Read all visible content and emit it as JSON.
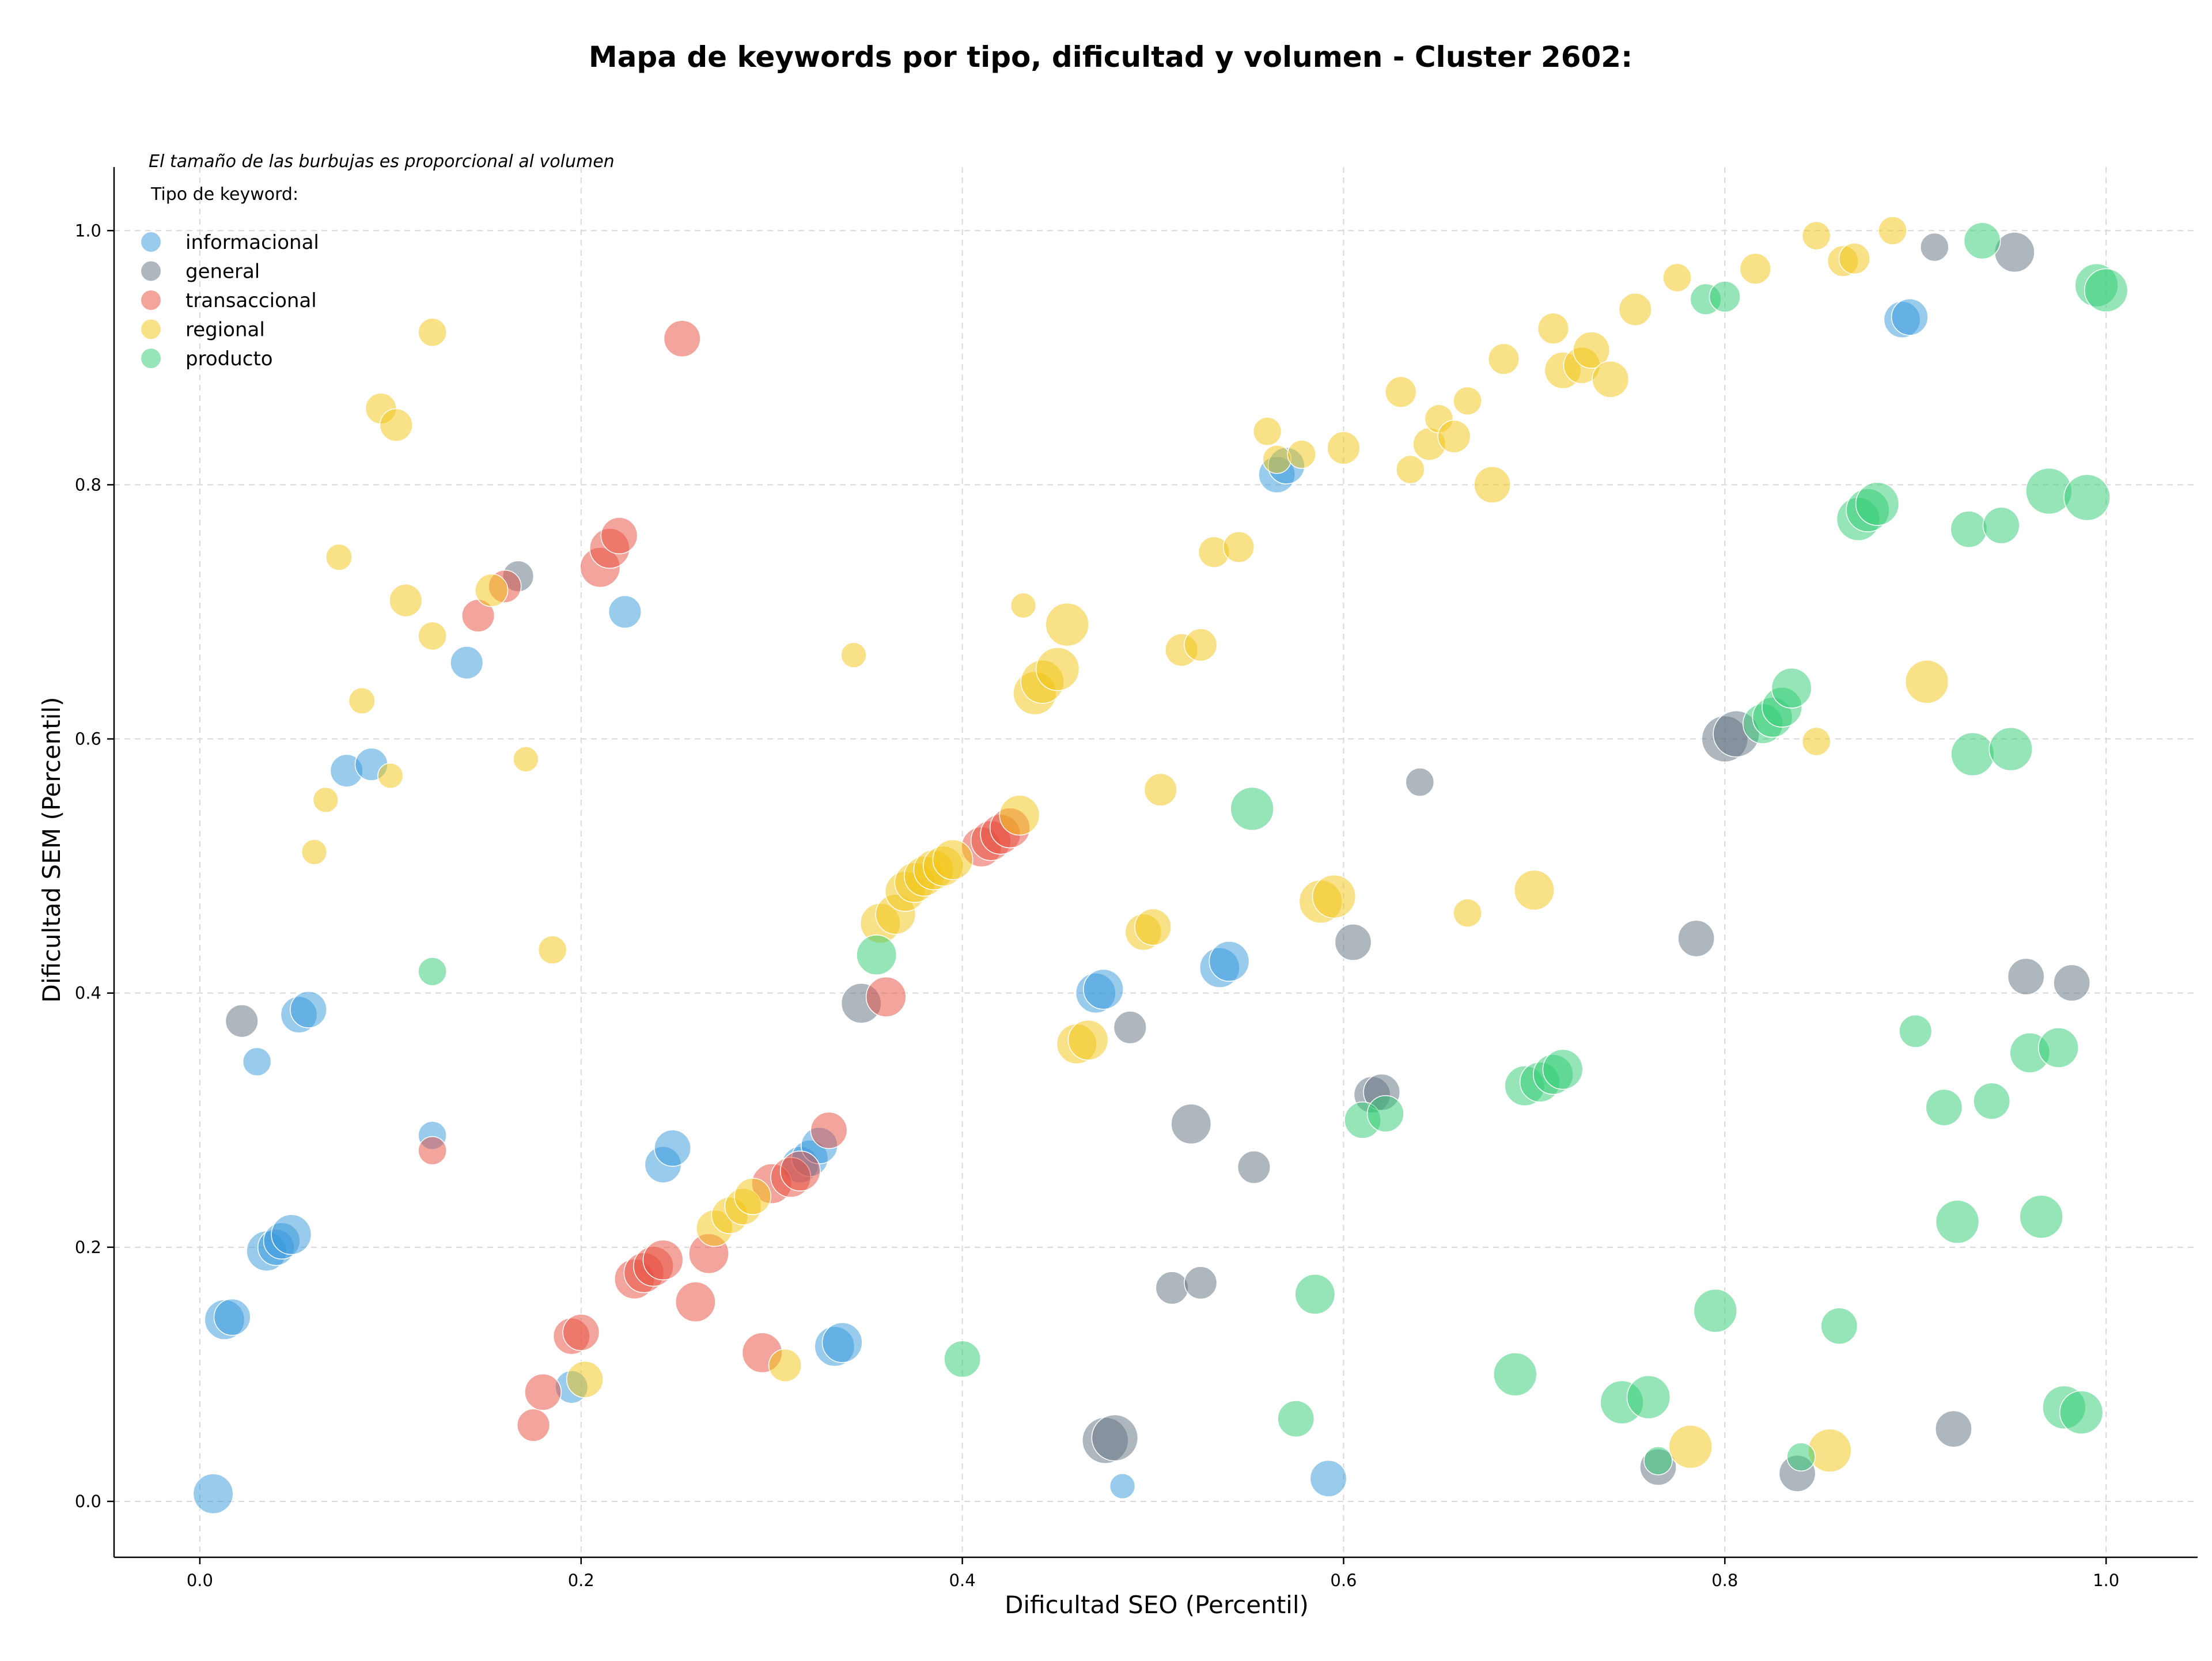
{
  "chart_data": {
    "type": "scatter",
    "title": "Mapa de keywords por tipo, dificultad y volumen - Cluster 2602:",
    "xlabel": "Dificultad SEO (Percentil)",
    "ylabel": "Dificultad SEM (Percentil)",
    "annotation": "El tamaño de las burbujas es proporcional al volumen",
    "legend_title": "Tipo de keyword:",
    "legend_position": "top-left",
    "grid": true,
    "xlim": [
      -0.045,
      1.048
    ],
    "ylim": [
      -0.044,
      1.05
    ],
    "xticks": [
      "0.0",
      "0.2",
      "0.4",
      "0.6",
      "0.8",
      "1.0"
    ],
    "yticks": [
      "0.0",
      "0.2",
      "0.4",
      "0.6",
      "0.8",
      "1.0"
    ],
    "series": [
      {
        "name": "informacional",
        "color": "#3498db",
        "points": [
          [
            0.007,
            0.006,
            3
          ],
          [
            0.013,
            0.143,
            3
          ],
          [
            0.017,
            0.145,
            2.5
          ],
          [
            0.03,
            0.346,
            1.5
          ],
          [
            0.035,
            0.197,
            3
          ],
          [
            0.04,
            0.2,
            2.5
          ],
          [
            0.043,
            0.205,
            2.5
          ],
          [
            0.048,
            0.21,
            3
          ],
          [
            0.052,
            0.383,
            2.5
          ],
          [
            0.057,
            0.387,
            2.5
          ],
          [
            0.077,
            0.575,
            2
          ],
          [
            0.09,
            0.58,
            2
          ],
          [
            0.122,
            0.288,
            1.5
          ],
          [
            0.14,
            0.66,
            2
          ],
          [
            0.223,
            0.7,
            2
          ],
          [
            0.195,
            0.09,
            2
          ],
          [
            0.243,
            0.265,
            2.5
          ],
          [
            0.248,
            0.278,
            2.5
          ],
          [
            0.315,
            0.265,
            2.5
          ],
          [
            0.32,
            0.27,
            2.5
          ],
          [
            0.325,
            0.28,
            2.5
          ],
          [
            0.333,
            0.122,
            3
          ],
          [
            0.337,
            0.125,
            3
          ],
          [
            0.47,
            0.4,
            3
          ],
          [
            0.474,
            0.403,
            3
          ],
          [
            0.484,
            0.012,
            1.2
          ],
          [
            0.535,
            0.42,
            3
          ],
          [
            0.54,
            0.425,
            3
          ],
          [
            0.565,
            0.808,
            2.5
          ],
          [
            0.57,
            0.815,
            2.5
          ],
          [
            0.592,
            0.018,
            2.5
          ],
          [
            0.893,
            0.93,
            2.5
          ],
          [
            0.897,
            0.932,
            2.5
          ]
        ]
      },
      {
        "name": "general",
        "color": "#5d6d7e",
        "points": [
          [
            0.022,
            0.378,
            2
          ],
          [
            0.167,
            0.728,
            1.8
          ],
          [
            0.347,
            0.392,
            3
          ],
          [
            0.475,
            0.048,
            4
          ],
          [
            0.48,
            0.05,
            4
          ],
          [
            0.488,
            0.373,
            2
          ],
          [
            0.52,
            0.297,
            3
          ],
          [
            0.51,
            0.168,
            2
          ],
          [
            0.525,
            0.172,
            2
          ],
          [
            0.553,
            0.263,
            2
          ],
          [
            0.605,
            0.44,
            2.5
          ],
          [
            0.615,
            0.32,
            2.5
          ],
          [
            0.62,
            0.322,
            2.5
          ],
          [
            0.64,
            0.566,
            1.5
          ],
          [
            0.765,
            0.027,
            2.5
          ],
          [
            0.785,
            0.443,
            2.5
          ],
          [
            0.8,
            0.6,
            4
          ],
          [
            0.806,
            0.604,
            4
          ],
          [
            0.838,
            0.022,
            2.5
          ],
          [
            0.91,
            0.987,
            1.5
          ],
          [
            0.92,
            0.057,
            2.5
          ],
          [
            0.952,
            0.983,
            3
          ],
          [
            0.958,
            0.413,
            2.5
          ],
          [
            0.982,
            0.408,
            2.5
          ]
        ]
      },
      {
        "name": "transaccional",
        "color": "#e74c3c",
        "points": [
          [
            0.122,
            0.276,
            1.5
          ],
          [
            0.146,
            0.697,
            2
          ],
          [
            0.16,
            0.72,
            2
          ],
          [
            0.175,
            0.06,
            2
          ],
          [
            0.18,
            0.086,
            2.5
          ],
          [
            0.195,
            0.13,
            2.5
          ],
          [
            0.2,
            0.133,
            2.5
          ],
          [
            0.21,
            0.735,
            3
          ],
          [
            0.215,
            0.75,
            3
          ],
          [
            0.22,
            0.76,
            2.5
          ],
          [
            0.228,
            0.175,
            3
          ],
          [
            0.233,
            0.18,
            3
          ],
          [
            0.238,
            0.185,
            3
          ],
          [
            0.243,
            0.19,
            3
          ],
          [
            0.253,
            0.915,
            2.5
          ],
          [
            0.26,
            0.157,
            3
          ],
          [
            0.267,
            0.195,
            3
          ],
          [
            0.295,
            0.117,
            3
          ],
          [
            0.3,
            0.25,
            3
          ],
          [
            0.31,
            0.255,
            3
          ],
          [
            0.315,
            0.26,
            3
          ],
          [
            0.33,
            0.292,
            2.5
          ],
          [
            0.36,
            0.397,
            3
          ],
          [
            0.41,
            0.515,
            3
          ],
          [
            0.415,
            0.52,
            3
          ],
          [
            0.42,
            0.525,
            3
          ],
          [
            0.425,
            0.53,
            3
          ]
        ]
      },
      {
        "name": "regional",
        "color": "#f1c40f",
        "points": [
          [
            0.06,
            0.511,
            1.2
          ],
          [
            0.066,
            0.552,
            1.2
          ],
          [
            0.073,
            0.743,
            1.3
          ],
          [
            0.085,
            0.63,
            1.3
          ],
          [
            0.095,
            0.86,
            1.8
          ],
          [
            0.1,
            0.571,
            1.2
          ],
          [
            0.103,
            0.847,
            2
          ],
          [
            0.108,
            0.709,
            2
          ],
          [
            0.122,
            0.681,
            1.5
          ],
          [
            0.122,
            0.92,
            1.5
          ],
          [
            0.153,
            0.717,
            2
          ],
          [
            0.171,
            0.584,
            1.2
          ],
          [
            0.185,
            0.434,
            1.5
          ],
          [
            0.202,
            0.096,
            2.5
          ],
          [
            0.27,
            0.215,
            2.5
          ],
          [
            0.278,
            0.225,
            2.5
          ],
          [
            0.285,
            0.232,
            2.5
          ],
          [
            0.29,
            0.24,
            2.5
          ],
          [
            0.307,
            0.107,
            2
          ],
          [
            0.343,
            0.666,
            1.2
          ],
          [
            0.357,
            0.455,
            3
          ],
          [
            0.365,
            0.462,
            3
          ],
          [
            0.37,
            0.48,
            3
          ],
          [
            0.375,
            0.487,
            3
          ],
          [
            0.38,
            0.492,
            3
          ],
          [
            0.385,
            0.497,
            3
          ],
          [
            0.39,
            0.5,
            3
          ],
          [
            0.395,
            0.505,
            3
          ],
          [
            0.43,
            0.54,
            3
          ],
          [
            0.432,
            0.705,
            1.2
          ],
          [
            0.438,
            0.636,
            3.5
          ],
          [
            0.442,
            0.645,
            3.5
          ],
          [
            0.45,
            0.655,
            3.5
          ],
          [
            0.455,
            0.69,
            3.5
          ],
          [
            0.46,
            0.36,
            3
          ],
          [
            0.466,
            0.363,
            3
          ],
          [
            0.495,
            0.448,
            2.5
          ],
          [
            0.5,
            0.452,
            2.5
          ],
          [
            0.504,
            0.56,
            2
          ],
          [
            0.515,
            0.67,
            2
          ],
          [
            0.525,
            0.674,
            2
          ],
          [
            0.532,
            0.747,
            1.8
          ],
          [
            0.545,
            0.751,
            1.8
          ],
          [
            0.56,
            0.842,
            1.5
          ],
          [
            0.565,
            0.82,
            1.5
          ],
          [
            0.578,
            0.824,
            1.5
          ],
          [
            0.6,
            0.829,
            2
          ],
          [
            0.588,
            0.472,
            3.5
          ],
          [
            0.595,
            0.476,
            3.5
          ],
          [
            0.63,
            0.873,
            1.8
          ],
          [
            0.635,
            0.812,
            1.5
          ],
          [
            0.645,
            0.832,
            2
          ],
          [
            0.65,
            0.852,
            1.5
          ],
          [
            0.658,
            0.838,
            2
          ],
          [
            0.665,
            0.866,
            1.5
          ],
          [
            0.665,
            0.463,
            1.5
          ],
          [
            0.678,
            0.8,
            2.5
          ],
          [
            0.684,
            0.899,
            1.8
          ],
          [
            0.7,
            0.481,
            3
          ],
          [
            0.71,
            0.923,
            1.8
          ],
          [
            0.715,
            0.89,
            2.5
          ],
          [
            0.725,
            0.894,
            2.5
          ],
          [
            0.73,
            0.906,
            2.5
          ],
          [
            0.74,
            0.883,
            2.5
          ],
          [
            0.753,
            0.938,
            2
          ],
          [
            0.775,
            0.963,
            1.5
          ],
          [
            0.782,
            0.043,
            3.5
          ],
          [
            0.816,
            0.97,
            1.8
          ],
          [
            0.848,
            0.996,
            1.5
          ],
          [
            0.848,
            0.598,
            1.5
          ],
          [
            0.855,
            0.04,
            3.5
          ],
          [
            0.862,
            0.976,
            1.8
          ],
          [
            0.868,
            0.978,
            1.8
          ],
          [
            0.888,
            1.0,
            1.5
          ],
          [
            0.906,
            0.645,
            3.5
          ]
        ]
      },
      {
        "name": "producto",
        "color": "#2ecc71",
        "points": [
          [
            0.122,
            0.417,
            1.5
          ],
          [
            0.355,
            0.43,
            3
          ],
          [
            0.4,
            0.112,
            2.5
          ],
          [
            0.552,
            0.545,
            3.5
          ],
          [
            0.575,
            0.065,
            2.5
          ],
          [
            0.585,
            0.163,
            3
          ],
          [
            0.61,
            0.3,
            2.5
          ],
          [
            0.622,
            0.305,
            2.5
          ],
          [
            0.69,
            0.1,
            3.5
          ],
          [
            0.695,
            0.327,
            3
          ],
          [
            0.703,
            0.33,
            3
          ],
          [
            0.71,
            0.336,
            3
          ],
          [
            0.715,
            0.34,
            3
          ],
          [
            0.746,
            0.078,
            3.5
          ],
          [
            0.76,
            0.082,
            3.5
          ],
          [
            0.765,
            0.032,
            1.5
          ],
          [
            0.79,
            0.946,
            1.8
          ],
          [
            0.8,
            0.948,
            1.8
          ],
          [
            0.795,
            0.15,
            3.5
          ],
          [
            0.82,
            0.612,
            3
          ],
          [
            0.825,
            0.617,
            3
          ],
          [
            0.83,
            0.625,
            3
          ],
          [
            0.835,
            0.64,
            3
          ],
          [
            0.84,
            0.035,
            1.5
          ],
          [
            0.86,
            0.138,
            2.5
          ],
          [
            0.87,
            0.773,
            3.5
          ],
          [
            0.875,
            0.78,
            3.5
          ],
          [
            0.88,
            0.785,
            3.5
          ],
          [
            0.9,
            0.37,
            2
          ],
          [
            0.915,
            0.31,
            2.5
          ],
          [
            0.922,
            0.22,
            3.5
          ],
          [
            0.928,
            0.765,
            2.5
          ],
          [
            0.93,
            0.588,
            3.5
          ],
          [
            0.935,
            0.992,
            2.5
          ],
          [
            0.94,
            0.315,
            2.5
          ],
          [
            0.945,
            0.768,
            2.5
          ],
          [
            0.95,
            0.592,
            3.5
          ],
          [
            0.96,
            0.353,
            3
          ],
          [
            0.966,
            0.224,
            3.5
          ],
          [
            0.97,
            0.795,
            4
          ],
          [
            0.975,
            0.357,
            3
          ],
          [
            0.978,
            0.074,
            3.5
          ],
          [
            0.987,
            0.07,
            3.5
          ],
          [
            0.99,
            0.79,
            4
          ],
          [
            0.995,
            0.957,
            3.5
          ],
          [
            1.0,
            0.953,
            3.5
          ]
        ]
      }
    ]
  }
}
